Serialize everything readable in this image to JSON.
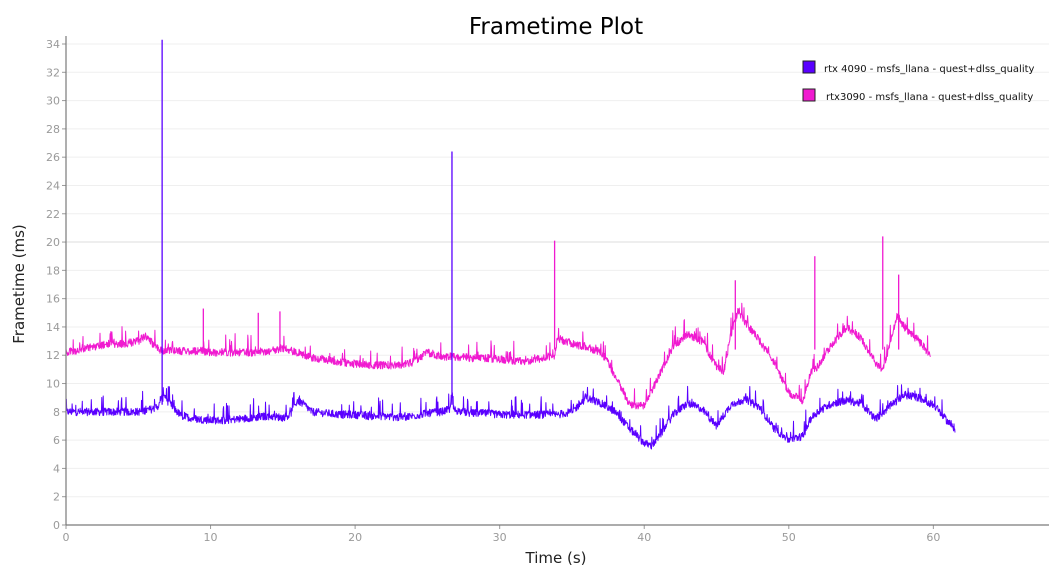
{
  "chart_data": {
    "type": "line",
    "title": "Frametime Plot",
    "xlabel": "Time (s)",
    "ylabel": "Frametime (ms)",
    "xlim": [
      0,
      68
    ],
    "ylim": [
      0,
      34
    ],
    "x_ticks": [
      0,
      10,
      20,
      30,
      40,
      50,
      60
    ],
    "y_ticks": [
      0,
      2,
      4,
      6,
      8,
      10,
      12,
      14,
      16,
      18,
      20,
      22,
      24,
      26,
      28,
      30,
      32,
      34
    ],
    "grid": true,
    "legend_position": "top-right",
    "series": [
      {
        "name": "rtx 4090 - msfs_llana - quest+dlss_quality",
        "color": "#5a00ff",
        "x": [
          0,
          1,
          2,
          3,
          4,
          5,
          6,
          6.5,
          6.6,
          6.7,
          7,
          7.5,
          8,
          9,
          10,
          11,
          12,
          13,
          14,
          15,
          15.5,
          16,
          16.5,
          17,
          18,
          19,
          20,
          21,
          22,
          23,
          24,
          25,
          26,
          26.6,
          26.7,
          26.8,
          27,
          28,
          29,
          30,
          31,
          32,
          33,
          34,
          35,
          36,
          37,
          38,
          39,
          40,
          40.5,
          41,
          42,
          43,
          44,
          45,
          46,
          47,
          48,
          49,
          50,
          51,
          51.5,
          52,
          53,
          54,
          55,
          56,
          57,
          58,
          59,
          60,
          61,
          61.5
        ],
        "y": [
          8.0,
          8.0,
          8.0,
          8.0,
          8.0,
          8.0,
          8.2,
          8.5,
          34.0,
          9.5,
          8.8,
          8.2,
          7.7,
          7.5,
          7.4,
          7.4,
          7.5,
          7.6,
          7.7,
          7.6,
          7.8,
          8.8,
          8.5,
          8.0,
          7.9,
          7.8,
          7.8,
          7.7,
          7.7,
          7.6,
          7.7,
          7.9,
          8.0,
          8.2,
          26.0,
          8.2,
          8.1,
          7.9,
          7.9,
          7.8,
          7.8,
          7.8,
          7.8,
          7.8,
          8.0,
          9.0,
          8.6,
          8.0,
          6.8,
          5.8,
          5.6,
          6.2,
          7.8,
          8.6,
          8.2,
          7.0,
          8.5,
          8.9,
          8.3,
          6.8,
          6.0,
          6.3,
          7.5,
          8.0,
          8.6,
          8.8,
          8.6,
          7.5,
          8.4,
          9.2,
          9.0,
          8.5,
          7.3,
          6.8
        ]
      },
      {
        "name": "rtx3090 - msfs_llana - quest+dlss_quality",
        "color": "#f01ad0",
        "x": [
          0,
          1,
          2,
          3,
          4,
          5,
          5.5,
          6,
          6.5,
          7,
          8,
          9,
          9.5,
          10,
          11,
          12,
          13,
          14,
          15,
          16,
          17,
          18,
          19,
          20,
          21,
          22,
          23,
          24,
          25,
          26,
          27,
          28,
          29,
          30,
          31,
          32,
          33,
          33.8,
          34,
          35,
          36,
          37,
          37.5,
          38,
          39,
          40,
          41,
          42,
          43,
          44,
          45,
          45.5,
          46,
          46.5,
          47,
          48,
          49,
          50,
          51,
          51.5,
          52,
          53,
          54,
          55,
          56,
          56.5,
          57,
          57.5,
          58,
          59,
          59.8
        ],
        "y": [
          12.2,
          12.4,
          12.6,
          12.8,
          12.8,
          13.0,
          13.4,
          12.8,
          12.4,
          12.3,
          12.3,
          12.3,
          12.3,
          12.2,
          12.2,
          12.2,
          12.2,
          12.3,
          12.5,
          12.2,
          11.8,
          11.7,
          11.5,
          11.4,
          11.3,
          11.3,
          11.3,
          11.5,
          12.2,
          11.9,
          11.9,
          11.8,
          11.8,
          11.7,
          11.6,
          11.6,
          11.8,
          12.0,
          13.2,
          12.8,
          12.6,
          12.2,
          11.5,
          10.5,
          8.5,
          8.4,
          10.5,
          12.6,
          13.5,
          13.0,
          11.2,
          10.8,
          13.5,
          15.2,
          14.3,
          13.0,
          11.5,
          9.3,
          8.8,
          10.8,
          11.2,
          12.8,
          14.0,
          13.2,
          11.5,
          11.0,
          12.8,
          14.8,
          14.0,
          13.0,
          12.0
        ]
      }
    ],
    "spikes": [
      {
        "series": 0,
        "x": 6.65,
        "y": 34.3
      },
      {
        "series": 0,
        "x": 26.7,
        "y": 26.4
      },
      {
        "series": 1,
        "x": 9.5,
        "y": 15.3
      },
      {
        "series": 1,
        "x": 13.3,
        "y": 15.0
      },
      {
        "series": 1,
        "x": 14.8,
        "y": 15.1
      },
      {
        "series": 1,
        "x": 33.8,
        "y": 20.1
      },
      {
        "series": 1,
        "x": 46.3,
        "y": 17.3
      },
      {
        "series": 1,
        "x": 51.8,
        "y": 19.0
      },
      {
        "series": 1,
        "x": 56.5,
        "y": 20.4
      },
      {
        "series": 1,
        "x": 57.6,
        "y": 17.7
      }
    ]
  }
}
